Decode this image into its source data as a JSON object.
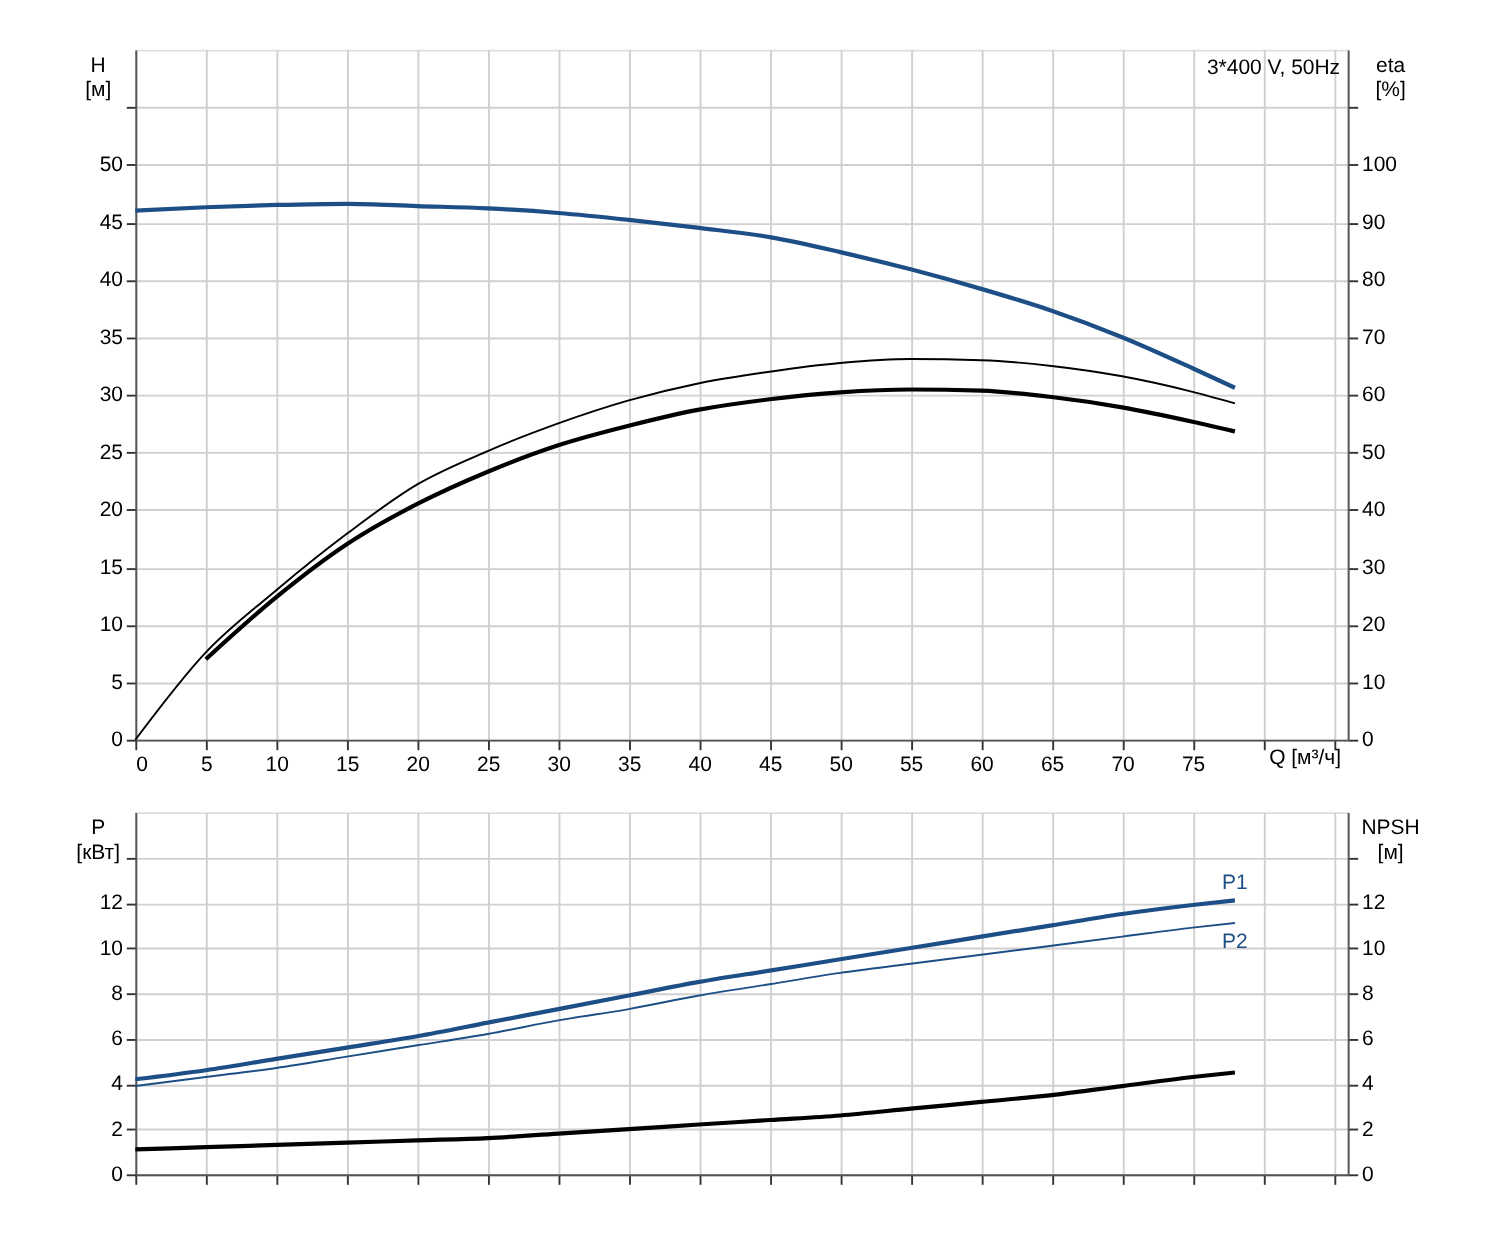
{
  "chart_data": [
    {
      "type": "line",
      "xlabel": "Q [м³/ч]",
      "ylabel": "H [м]",
      "y2label": "eta [%]",
      "annotations": [
        "3*400 V, 50Hz"
      ],
      "xlim": [
        0,
        86
      ],
      "xticks": [
        0,
        5,
        10,
        15,
        20,
        25,
        30,
        35,
        40,
        45,
        50,
        55,
        60,
        65,
        70,
        75,
        {
          "value": 80,
          "label": null
        },
        {
          "value": 85,
          "label": null
        }
      ],
      "ylim": [
        0,
        60
      ],
      "yticks": [
        0,
        5,
        10,
        15,
        20,
        25,
        30,
        35,
        40,
        45,
        50,
        {
          "value": 55,
          "label": null
        }
      ],
      "y2lim": [
        0,
        120
      ],
      "y2ticks": [
        0,
        10,
        20,
        30,
        40,
        50,
        60,
        70,
        80,
        90,
        100,
        {
          "value": 110,
          "label": null
        }
      ],
      "grid": true,
      "legend": false,
      "marker": "none",
      "line_style": "solid",
      "series": [
        {
          "color": "#1d4f86",
          "x": [
            0,
            5,
            10,
            15,
            20,
            25,
            30,
            35,
            40,
            45,
            50,
            55,
            60,
            65,
            70,
            75,
            78
          ],
          "values": [
            46,
            46.3,
            46.5,
            46.6,
            46.4,
            46.2,
            45.8,
            45.2,
            44.5,
            43.7,
            42.4,
            40.9,
            39.2,
            37.3,
            35,
            32.3,
            30.6
          ]
        },
        {
          "color": "#000000",
          "axis": "y2",
          "x": [
            0,
            5,
            10,
            15,
            20,
            25,
            30,
            35,
            40,
            45,
            50,
            55,
            60,
            65,
            70,
            75,
            78
          ],
          "values": [
            0,
            15.2,
            26,
            35.8,
            44.4,
            50.2,
            55,
            59,
            62,
            64,
            65.5,
            66.2,
            66,
            65,
            63.2,
            60.5,
            58.5
          ]
        },
        {
          "color": "#000000",
          "axis": "y2",
          "x": [
            5,
            10,
            15,
            20,
            25,
            30,
            35,
            40,
            45,
            50,
            55,
            60,
            65,
            70,
            75,
            78
          ],
          "values": [
            14,
            24.8,
            34,
            41,
            46.6,
            51.2,
            54.6,
            57.4,
            59.2,
            60.4,
            60.9,
            60.7,
            59.6,
            57.8,
            55.3,
            53.6
          ]
        }
      ]
    },
    {
      "type": "line",
      "ylabel": "P [кВт]",
      "y2label": "NPSH [м]",
      "tick_labels": "y",
      "xlim": [
        0,
        86
      ],
      "xticks": [
        0,
        5,
        10,
        15,
        20,
        25,
        30,
        35,
        40,
        45,
        50,
        55,
        60,
        65,
        70,
        75,
        80,
        85
      ],
      "ylim": [
        0,
        16
      ],
      "yticks": [
        0,
        2,
        4,
        6,
        8,
        10,
        12,
        {
          "value": 14,
          "label": null
        }
      ],
      "y2lim": [
        0,
        16
      ],
      "y2ticks": [
        0,
        2,
        4,
        6,
        8,
        10,
        12,
        {
          "value": 14,
          "label": null
        }
      ],
      "grid": true,
      "legend": false,
      "marker": "none",
      "line_style": "solid",
      "series": [
        {
          "name": "P1",
          "color": "#1d4f86",
          "x": [
            0,
            5,
            10,
            15,
            20,
            25,
            30,
            35,
            40,
            45,
            50,
            55,
            60,
            65,
            70,
            75,
            78
          ],
          "values": [
            4.2,
            4.6,
            5.1,
            5.6,
            6.1,
            6.7,
            7.3,
            7.9,
            8.5,
            9,
            9.5,
            10,
            10.5,
            11,
            11.5,
            11.9,
            12.1
          ]
        },
        {
          "name": "P2",
          "color": "#1d4f86",
          "x": [
            0,
            5,
            10,
            15,
            20,
            25,
            30,
            35,
            40,
            45,
            50,
            55,
            60,
            65,
            70,
            75,
            78
          ],
          "values": [
            3.9,
            4.3,
            4.7,
            5.2,
            5.7,
            6.2,
            6.8,
            7.3,
            7.9,
            8.4,
            8.9,
            9.3,
            9.7,
            10.1,
            10.5,
            10.9,
            11.1
          ]
        },
        {
          "color": "#000000",
          "axis": "y2",
          "x": [
            0,
            5,
            10,
            15,
            20,
            25,
            30,
            35,
            40,
            45,
            50,
            55,
            60,
            65,
            70,
            75,
            78
          ],
          "values": [
            1.1,
            1.2,
            1.3,
            1.4,
            1.5,
            1.6,
            1.8,
            2,
            2.2,
            2.4,
            2.6,
            2.9,
            3.2,
            3.5,
            3.9,
            4.3,
            4.5
          ]
        }
      ]
    }
  ]
}
